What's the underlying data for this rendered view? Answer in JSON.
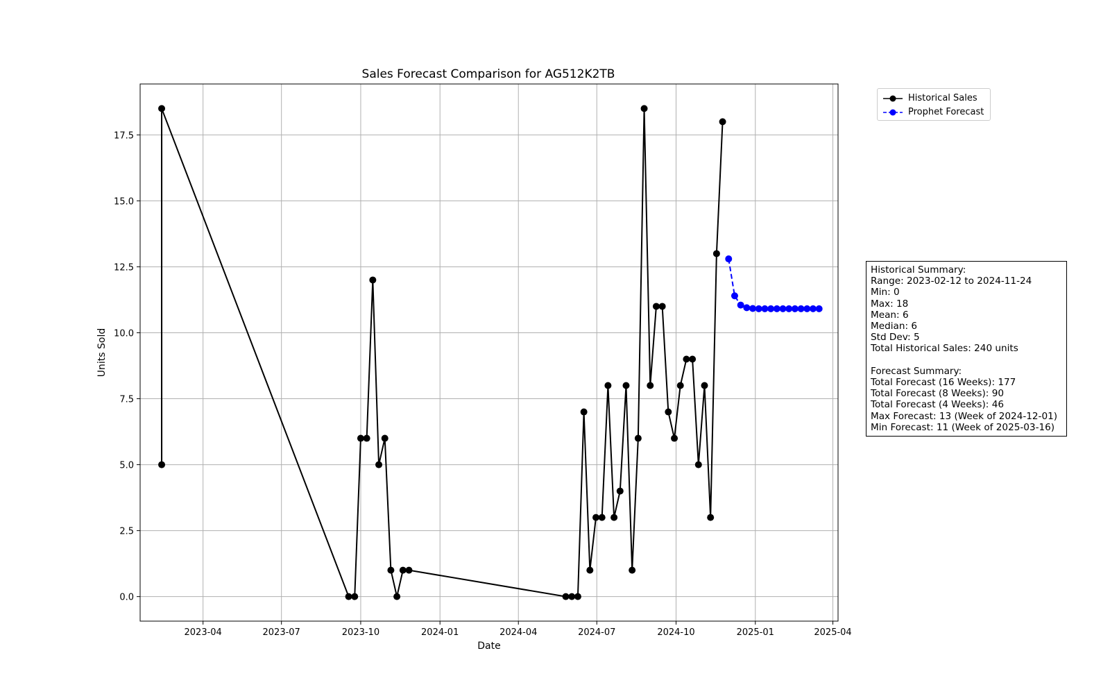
{
  "chart_data": {
    "type": "line",
    "title": "Sales Forecast Comparison for AG512K2TB",
    "xlabel": "Date",
    "ylabel": "Units Sold",
    "x_ticks": [
      "2023-04",
      "2023-07",
      "2023-10",
      "2024-01",
      "2024-04",
      "2024-07",
      "2024-10",
      "2025-01",
      "2025-04"
    ],
    "y_ticks": [
      "0.0",
      "2.5",
      "5.0",
      "7.5",
      "10.0",
      "12.5",
      "15.0",
      "17.5"
    ],
    "xlim": [
      "2023-01-18",
      "2025-04-07"
    ],
    "ylim": [
      -0.93,
      19.43
    ],
    "grid": true,
    "legend_position": "top-right, outside plot",
    "series": [
      {
        "name": "Historical Sales",
        "color": "#000000",
        "line_style": "solid",
        "marker": "circle",
        "points": [
          [
            "2023-02-12",
            5
          ],
          [
            "2023-02-12",
            18.5
          ],
          [
            "2023-09-17",
            0
          ],
          [
            "2023-09-24",
            0
          ],
          [
            "2023-10-01",
            6
          ],
          [
            "2023-10-08",
            6
          ],
          [
            "2023-10-15",
            12
          ],
          [
            "2023-10-22",
            5
          ],
          [
            "2023-10-29",
            6
          ],
          [
            "2023-11-05",
            1
          ],
          [
            "2023-11-12",
            0
          ],
          [
            "2023-11-19",
            1
          ],
          [
            "2023-11-26",
            1
          ],
          [
            "2024-05-26",
            0
          ],
          [
            "2024-06-02",
            0
          ],
          [
            "2024-06-09",
            0
          ],
          [
            "2024-06-16",
            7
          ],
          [
            "2024-06-23",
            1
          ],
          [
            "2024-06-30",
            3
          ],
          [
            "2024-07-07",
            3
          ],
          [
            "2024-07-14",
            8
          ],
          [
            "2024-07-21",
            3
          ],
          [
            "2024-07-28",
            4
          ],
          [
            "2024-08-04",
            8
          ],
          [
            "2024-08-11",
            1
          ],
          [
            "2024-08-18",
            6
          ],
          [
            "2024-08-25",
            18.5
          ],
          [
            "2024-09-01",
            8
          ],
          [
            "2024-09-08",
            11
          ],
          [
            "2024-09-15",
            11
          ],
          [
            "2024-09-22",
            7
          ],
          [
            "2024-09-29",
            6
          ],
          [
            "2024-10-06",
            8
          ],
          [
            "2024-10-13",
            9
          ],
          [
            "2024-10-20",
            9
          ],
          [
            "2024-10-27",
            5
          ],
          [
            "2024-11-03",
            8
          ],
          [
            "2024-11-10",
            3
          ],
          [
            "2024-11-17",
            13
          ],
          [
            "2024-11-24",
            18
          ]
        ]
      },
      {
        "name": "Prophet Forecast",
        "color": "#0000ff",
        "line_style": "dashed",
        "marker": "circle",
        "points": [
          [
            "2024-12-01",
            12.8
          ],
          [
            "2024-12-08",
            11.4
          ],
          [
            "2024-12-15",
            11.05
          ],
          [
            "2024-12-22",
            10.95
          ],
          [
            "2024-12-29",
            10.92
          ],
          [
            "2025-01-05",
            10.91
          ],
          [
            "2025-01-12",
            10.91
          ],
          [
            "2025-01-19",
            10.91
          ],
          [
            "2025-01-26",
            10.91
          ],
          [
            "2025-02-02",
            10.91
          ],
          [
            "2025-02-09",
            10.91
          ],
          [
            "2025-02-16",
            10.91
          ],
          [
            "2025-02-23",
            10.91
          ],
          [
            "2025-03-02",
            10.91
          ],
          [
            "2025-03-09",
            10.91
          ],
          [
            "2025-03-16",
            10.91
          ]
        ]
      }
    ]
  },
  "legend": {
    "historical_label": "Historical Sales",
    "forecast_label": "Prophet Forecast"
  },
  "summary": {
    "lines": [
      "Historical Summary:",
      "Range: 2023-02-12 to 2024-11-24",
      "Min: 0",
      "Max: 18",
      "Mean: 6",
      "Median: 6",
      "Std Dev: 5",
      "Total Historical Sales: 240 units",
      "",
      "Forecast Summary:",
      "Total Forecast (16 Weeks): 177",
      "Total Forecast (8 Weeks): 90",
      "Total Forecast (4 Weeks): 46",
      "Max Forecast: 13 (Week of 2024-12-01)",
      "Min Forecast: 11 (Week of 2025-03-16)"
    ]
  }
}
